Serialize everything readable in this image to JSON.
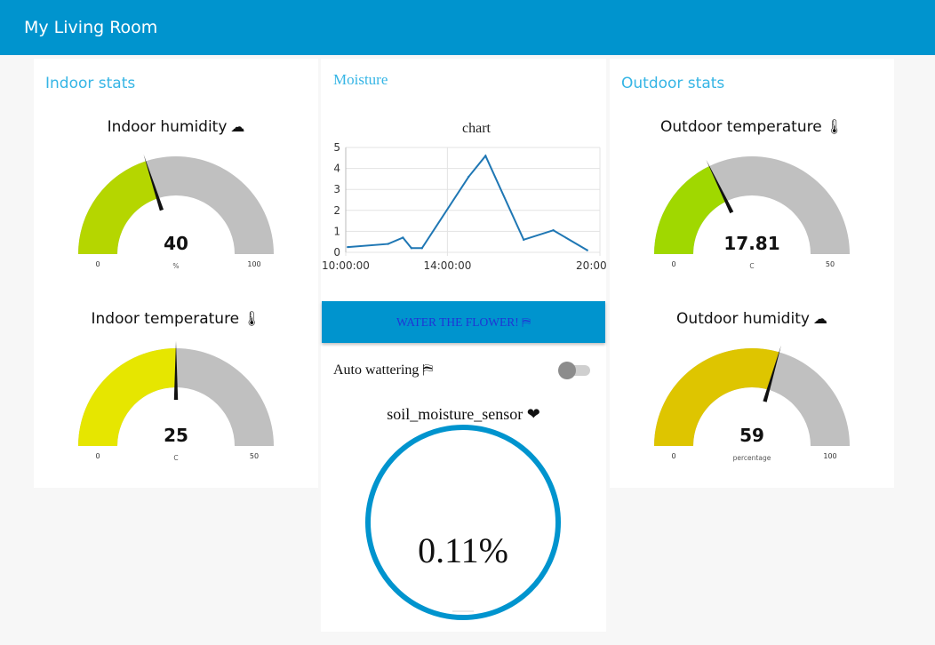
{
  "header": {
    "title": "My Living Room"
  },
  "indoor": {
    "title": "Indoor stats",
    "humidity": {
      "label": "Indoor humidity",
      "icon": "cloud-icon",
      "glyph": "☁",
      "value": "40",
      "units": "%",
      "min": "0",
      "max": "100",
      "color": "#b5d600",
      "fraction": 0.4
    },
    "temperature": {
      "label": "Indoor temperature",
      "icon": "thermometer-icon",
      "glyph": "🌡",
      "value": "25",
      "units": "C",
      "min": "0",
      "max": "50",
      "color": "#e6e600",
      "fraction": 0.5
    }
  },
  "moisture": {
    "title": "Moisture",
    "water_button": "WATER THE FLOWER! ⛿",
    "auto_label": "Auto wattering ⛿",
    "auto_on": false,
    "sensor_label": "soil_moisture_sensor ❤",
    "sensor_value": "0.11%",
    "ring_color": "#0094ce"
  },
  "outdoor": {
    "title": "Outdoor stats",
    "temperature": {
      "label": "Outdoor temperature",
      "icon": "thermometer-icon",
      "glyph": "🌡",
      "value": "17.81",
      "units": "C",
      "min": "0",
      "max": "50",
      "color": "#a0d800",
      "fraction": 0.3562
    },
    "humidity": {
      "label": "Outdoor humidity",
      "icon": "cloud-icon",
      "glyph": "☁",
      "value": "59",
      "units": "percentage",
      "min": "0",
      "max": "100",
      "color": "#dec500",
      "fraction": 0.59
    }
  },
  "chart_data": {
    "type": "line",
    "title": "chart",
    "x_ticks": [
      "10:00:00",
      "14:00:00",
      "20:00:00"
    ],
    "y_ticks": [
      "0",
      "1",
      "2",
      "3",
      "4",
      "5"
    ],
    "ylim": [
      0,
      5
    ],
    "xlim": [
      "10:00:00",
      "20:00:00"
    ],
    "grid": true,
    "series": [
      {
        "color": "#1f77b4",
        "x": [
          "10:05:00",
          "11:40:00",
          "12:15:00",
          "12:35:00",
          "13:00:00",
          "14:50:00",
          "15:30:00",
          "17:00:00",
          "18:10:00",
          "19:30:00"
        ],
        "y": [
          0.25,
          0.4,
          0.7,
          0.2,
          0.2,
          3.6,
          4.6,
          0.6,
          1.05,
          0.1
        ]
      }
    ]
  }
}
